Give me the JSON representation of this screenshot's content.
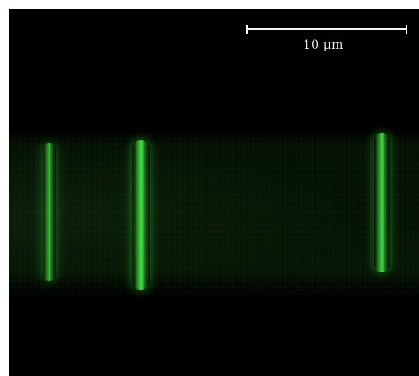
{
  "image": {
    "scale_bar": {
      "label": "10 μm"
    },
    "colors": {
      "background": "#000000",
      "fluorescence": "#44e644",
      "frame": "#ffffff",
      "scale_bar": "#f4f4f4"
    }
  }
}
